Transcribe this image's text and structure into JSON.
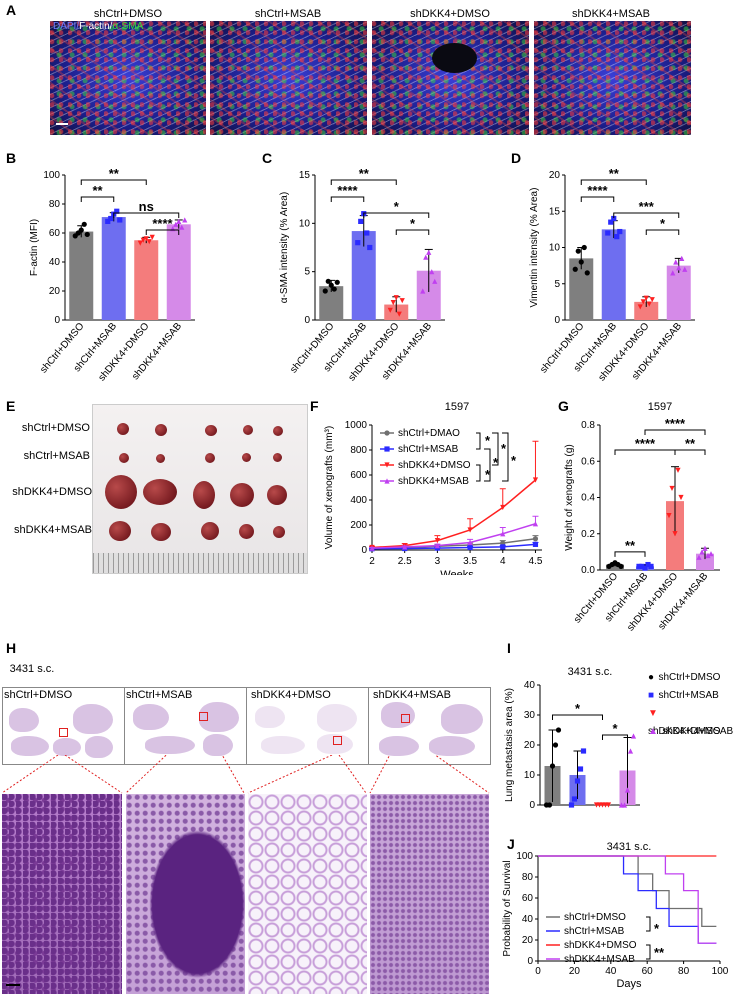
{
  "panels": {
    "A": "A",
    "B": "B",
    "C": "C",
    "D": "D",
    "E": "E",
    "F": "F",
    "G": "G",
    "H": "H",
    "I": "I",
    "J": "J"
  },
  "groups": [
    "shCtrl+DMSO",
    "shCtrl+MSAB",
    "shDKK4+DMSO",
    "shDKK4+MSAB"
  ],
  "panelA": {
    "stain_dapi": "DAPI/",
    "stain_factin": "F-actin/",
    "stain_sma": "α-SMA"
  },
  "colors": {
    "gray": "#7f7f7f",
    "blue": "#6e6ef0",
    "red": "#f47c7c",
    "purple": "#d58ae8",
    "dot_gray": "#000000",
    "dot_blue": "#2b2bff",
    "dot_red": "#ff2020",
    "dot_purple": "#c040f0"
  },
  "panelE": {
    "rows": [
      "shCtrl+DMSO",
      "shCtrl+MSAB",
      "shDKK4+DMSO",
      "shDKK4+MSAB"
    ]
  },
  "panelH": {
    "model": "3431 s.c."
  },
  "chart_data": [
    {
      "type": "bar",
      "panel": "B",
      "ylabel": "F-actin (MFI)",
      "ylim": [
        0,
        100
      ],
      "yticks": [
        0,
        20,
        40,
        60,
        80,
        100
      ],
      "categories": [
        "shCtrl+DMSO",
        "shCtrl+MSAB",
        "shDKK4+DMSO",
        "shDKK4+MSAB"
      ],
      "values": [
        61,
        71,
        55,
        66
      ],
      "errors": [
        4,
        3,
        2,
        3
      ],
      "points": [
        [
          58,
          60,
          62,
          66,
          59
        ],
        [
          68,
          70,
          73,
          75,
          69
        ],
        [
          53,
          55,
          56,
          54,
          57
        ],
        [
          63,
          66,
          68,
          64,
          69
        ]
      ],
      "significance": [
        {
          "from": 0,
          "to": 2,
          "label": "**"
        },
        {
          "from": 0,
          "to": 1,
          "label": "**"
        },
        {
          "from": 1,
          "to": 3,
          "label": "ns"
        },
        {
          "from": 2,
          "to": 3,
          "label": "****"
        }
      ]
    },
    {
      "type": "bar",
      "panel": "C",
      "ylabel": "α-SMA intensity (% Area)",
      "ylim": [
        0,
        15
      ],
      "yticks": [
        0,
        5,
        10,
        15
      ],
      "categories": [
        "shCtrl+DMSO",
        "shCtrl+MSAB",
        "shDKK4+DMSO",
        "shDKK4+MSAB"
      ],
      "values": [
        3.5,
        9.2,
        1.6,
        5.1
      ],
      "errors": [
        0.6,
        1.6,
        0.8,
        2.2
      ],
      "points": [
        [
          3.0,
          4.0,
          3.6,
          3.2,
          3.9
        ],
        [
          8.0,
          10.2,
          11.0,
          9.0,
          7.5
        ],
        [
          1.0,
          1.8,
          2.3,
          0.6,
          2.0
        ],
        [
          3.0,
          6.5,
          7.0,
          5.0,
          4.0
        ]
      ],
      "significance": [
        {
          "from": 0,
          "to": 2,
          "label": "**"
        },
        {
          "from": 0,
          "to": 1,
          "label": "****"
        },
        {
          "from": 1,
          "to": 3,
          "label": "*"
        },
        {
          "from": 2,
          "to": 3,
          "label": "*"
        }
      ]
    },
    {
      "type": "bar",
      "panel": "D",
      "ylabel": "Vimentin intensity (% Area)",
      "ylim": [
        0,
        20
      ],
      "yticks": [
        0,
        5,
        10,
        15,
        20
      ],
      "categories": [
        "shCtrl+DMSO",
        "shCtrl+MSAB",
        "shDKK4+DMSO",
        "shDKK4+MSAB"
      ],
      "values": [
        8.5,
        12.5,
        2.5,
        7.5
      ],
      "errors": [
        1.5,
        1.2,
        0.7,
        1.0
      ],
      "points": [
        [
          7.0,
          9.5,
          8.0,
          10.0,
          6.5
        ],
        [
          12.0,
          13.5,
          14.0,
          11.5,
          12.2
        ],
        [
          1.8,
          2.5,
          3.0,
          2.2,
          2.8
        ],
        [
          6.5,
          8.0,
          7.2,
          8.5,
          7.0
        ]
      ],
      "significance": [
        {
          "from": 0,
          "to": 2,
          "label": "**"
        },
        {
          "from": 0,
          "to": 1,
          "label": "****"
        },
        {
          "from": 1,
          "to": 3,
          "label": "***"
        },
        {
          "from": 2,
          "to": 3,
          "label": "*"
        }
      ]
    },
    {
      "type": "line",
      "panel": "F",
      "title": "1597",
      "xlabel": "Weeks",
      "ylabel": "Volume of xenografts (mm³)",
      "x": [
        2,
        2.5,
        3,
        3.5,
        4,
        4.5
      ],
      "xticks": [
        "2",
        "2.5",
        "3",
        "3.5",
        "4",
        "4.5"
      ],
      "ylim": [
        0,
        1000
      ],
      "yticks": [
        0,
        200,
        400,
        600,
        800,
        1000
      ],
      "series": [
        {
          "name": "shCtrl+DMAO",
          "color": "#707070",
          "marker": "circle",
          "values": [
            15,
            20,
            30,
            40,
            55,
            90
          ],
          "errors": [
            5,
            5,
            10,
            15,
            20,
            25
          ]
        },
        {
          "name": "shCtrl+MSAB",
          "color": "#2b2bff",
          "marker": "square",
          "values": [
            10,
            12,
            15,
            20,
            25,
            45
          ],
          "errors": [
            3,
            4,
            6,
            8,
            10,
            15
          ]
        },
        {
          "name": "shDKK4+DMSO",
          "color": "#ff2020",
          "marker": "triangle-down",
          "values": [
            20,
            35,
            75,
            160,
            340,
            560
          ],
          "errors": [
            10,
            15,
            40,
            90,
            150,
            310
          ]
        },
        {
          "name": "shDKK4+MSAB",
          "color": "#c040f0",
          "marker": "triangle",
          "values": [
            15,
            25,
            35,
            60,
            130,
            210
          ],
          "errors": [
            5,
            8,
            12,
            25,
            50,
            60
          ]
        }
      ],
      "significance": [
        "*",
        "*",
        "*",
        "*",
        "*"
      ]
    },
    {
      "type": "bar",
      "panel": "G",
      "title": "1597",
      "ylabel": "Weight of xenografts (g)",
      "ylim": [
        0,
        0.8
      ],
      "yticks": [
        0.0,
        0.2,
        0.4,
        0.6,
        0.8
      ],
      "categories": [
        "shCtrl+DMSO",
        "shCtrl+MSAB",
        "shDKK4+DMSO",
        "shDKK4+MSAB"
      ],
      "values": [
        0.03,
        0.02,
        0.38,
        0.09
      ],
      "errors": [
        0.01,
        0.01,
        0.19,
        0.03
      ],
      "points": [
        [
          0.02,
          0.03,
          0.04,
          0.03,
          0.02
        ],
        [
          0.02,
          0.02,
          0.01,
          0.03,
          0.02
        ],
        [
          0.3,
          0.45,
          0.2,
          0.55,
          0.4
        ],
        [
          0.07,
          0.1,
          0.12,
          0.08,
          0.09
        ]
      ],
      "significance": [
        {
          "from": 0,
          "to": 1,
          "label": "**"
        },
        {
          "from": 0,
          "to": 2,
          "label": "****"
        },
        {
          "from": 2,
          "to": 3,
          "label": "**"
        },
        {
          "from": 1,
          "to": 3,
          "label": "****"
        }
      ]
    },
    {
      "type": "bar",
      "panel": "I",
      "title": "3431 s.c.",
      "ylabel": "Lung metastasis area (%)",
      "ylim": [
        0,
        40
      ],
      "yticks": [
        0,
        10,
        20,
        30,
        40
      ],
      "categories": [
        "shCtrl+DMSO",
        "shCtrl+MSAB",
        "shDKK4+DMSO",
        "shDKK4+MSAB"
      ],
      "values": [
        13,
        10,
        0.2,
        11.5
      ],
      "errors": [
        12,
        8,
        0.3,
        11
      ],
      "points": [
        [
          0,
          0,
          13,
          20,
          25
        ],
        [
          0,
          2,
          8,
          12,
          18
        ],
        [
          0,
          0,
          0,
          0,
          0
        ],
        [
          0,
          0,
          5,
          18,
          23
        ]
      ],
      "significance": [
        {
          "from": 0,
          "to": 2,
          "label": "*"
        },
        {
          "from": 2,
          "to": 3,
          "label": "*"
        }
      ],
      "legend": [
        "shCtrl+DMSO",
        "shCtrl+MSAB",
        "shDKK4+DMSO",
        "shDKK4+MSAB"
      ]
    },
    {
      "type": "line",
      "panel": "J",
      "title": "3431 s.c.",
      "xlabel": "Days",
      "ylabel": "Probability of Survival",
      "xlim": [
        0,
        100
      ],
      "ylim": [
        0,
        100
      ],
      "xticks": [
        0,
        20,
        40,
        60,
        80,
        100
      ],
      "yticks": [
        0,
        20,
        40,
        60,
        80,
        100
      ],
      "series": [
        {
          "name": "shCtrl+DMSO",
          "color": "#707070",
          "steps": [
            [
              0,
              100
            ],
            [
              55,
              100
            ],
            [
              55,
              83
            ],
            [
              63,
              83
            ],
            [
              63,
              67
            ],
            [
              72,
              67
            ],
            [
              72,
              50
            ],
            [
              90,
              50
            ],
            [
              90,
              33
            ],
            [
              98,
              33
            ]
          ]
        },
        {
          "name": "shCtrl+MSAB",
          "color": "#2b2bff",
          "steps": [
            [
              0,
              100
            ],
            [
              47,
              100
            ],
            [
              47,
              83
            ],
            [
              55,
              83
            ],
            [
              55,
              67
            ],
            [
              65,
              67
            ],
            [
              65,
              50
            ],
            [
              72,
              50
            ],
            [
              72,
              33
            ],
            [
              88,
              33
            ],
            [
              88,
              17
            ],
            [
              98,
              17
            ]
          ]
        },
        {
          "name": "shDKK4+DMSO",
          "color": "#ff2020",
          "steps": [
            [
              0,
              100
            ],
            [
              98,
              100
            ]
          ]
        },
        {
          "name": "shDKK4+MSAB",
          "color": "#c040f0",
          "steps": [
            [
              0,
              100
            ],
            [
              70,
              100
            ],
            [
              70,
              83
            ],
            [
              80,
              83
            ],
            [
              80,
              67
            ],
            [
              88,
              67
            ],
            [
              88,
              17
            ],
            [
              98,
              17
            ]
          ]
        }
      ],
      "significance": [
        "*",
        "**"
      ]
    }
  ]
}
